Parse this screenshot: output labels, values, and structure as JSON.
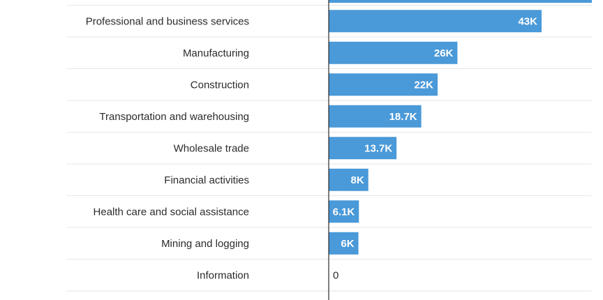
{
  "chart_data": {
    "type": "bar",
    "orientation": "horizontal",
    "categories": [
      "Professional and business services",
      "Manufacturing",
      "Construction",
      "Transportation and warehousing",
      "Wholesale trade",
      "Financial activities",
      "Health care and social assistance",
      "Mining and logging",
      "Information"
    ],
    "values": [
      43000,
      26000,
      22000,
      18700,
      13700,
      8000,
      6100,
      6000,
      0
    ],
    "data_labels": [
      "43K",
      "26K",
      "22K",
      "18.7K",
      "13.7K",
      "8K",
      "6.1K",
      "6K",
      "0"
    ],
    "xlim": [
      0,
      53000
    ],
    "grid": "horizontal row separators",
    "bar_color": "#4a99d8",
    "axis_color": "#2b2b2b",
    "gridline_color": "#e6e6e6"
  }
}
